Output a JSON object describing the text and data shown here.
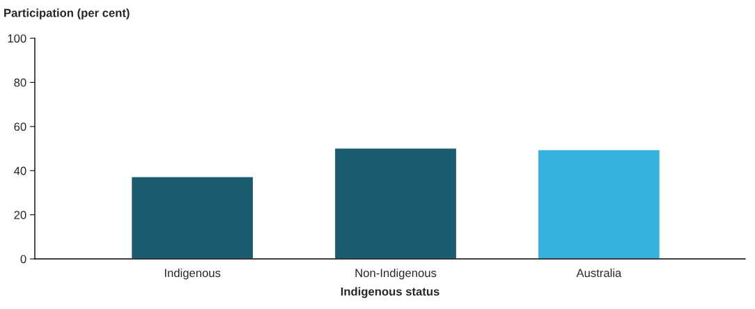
{
  "chart_data": {
    "type": "bar",
    "ylabel": "Participation (per cent)",
    "xlabel": "Indigenous status",
    "categories": [
      "Indigenous",
      "Non-Indigenous",
      "Australia"
    ],
    "values": [
      37.3,
      50.2,
      49.5
    ],
    "colors": [
      "#1a5c70",
      "#1a5c70",
      "#36b3dc"
    ],
    "ylim": [
      0,
      100
    ],
    "yticks": [
      0,
      20,
      40,
      60,
      80,
      100
    ],
    "grid": false,
    "legend": false
  }
}
